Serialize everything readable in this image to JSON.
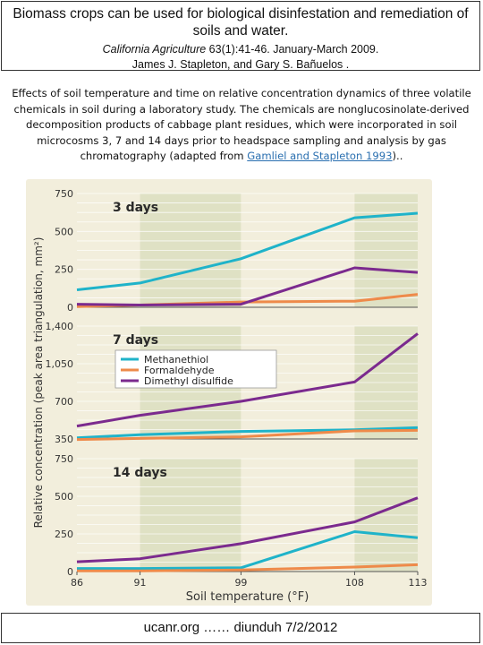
{
  "header": {
    "title": "Biomass crops can be used for biological disinfestation and remediation of soils and water.",
    "journal": "California Agriculture",
    "citation_rest": " 63(1):41-46. January-March 2009.",
    "authors": "James J. Stapleton, and  Gary S. Bañuelos ."
  },
  "caption": {
    "text": "Effects of soil temperature and time on relative concentration dynamics of three volatile chemicals in soil during a laboratory study. The chemicals are nonglucosinolate-derived decomposition products of cabbage plant residues, which were incorporated in soil microcosms 3, 7 and 14 days prior to headspace sampling and analysis by gas chromatography (adapted from ",
    "link": "Gamliel and Stapleton 1993",
    "tail": ").."
  },
  "footer": {
    "text": "ucanr.org ……  diunduh 7/2/2012"
  },
  "colors": {
    "Methanethiol": "#1fb3c9",
    "Formaldehyde": "#ee8a4a",
    "Dimethyl disulfide": "#7b2a8e",
    "band_light": "#f2eedc",
    "band_green": "#dfe1c4"
  },
  "chart_data": {
    "type": "line",
    "xlabel": "Soil temperature (°F)",
    "ylabel": "Relative concentration (peak area triangulation, mm²)",
    "x": [
      86,
      91,
      99,
      108,
      113
    ],
    "x_tick_labels": [
      "86",
      "91",
      "99",
      "108",
      "113"
    ],
    "legend": [
      "Methanethiol",
      "Formaldehyde",
      "Dimethyl disulfide"
    ],
    "legend_position": "top-left of middle panel",
    "panels": [
      {
        "label": "3 days",
        "ylim": [
          0,
          750
        ],
        "y_tick_labels": [
          "750",
          "500",
          "250",
          "0"
        ],
        "yticks": [
          750,
          500,
          250,
          0
        ],
        "series": [
          {
            "name": "Methanethiol",
            "values": [
              115,
              160,
              320,
              590,
              620
            ]
          },
          {
            "name": "Formaldehyde",
            "values": [
              5,
              15,
              35,
              40,
              85
            ]
          },
          {
            "name": "Dimethyl disulfide",
            "values": [
              20,
              15,
              20,
              260,
              230
            ]
          }
        ]
      },
      {
        "label": "7 days",
        "ylim": [
          350,
          1400
        ],
        "y_tick_labels": [
          "1,400",
          "1,050",
          "700",
          "350"
        ],
        "yticks": [
          1400,
          1050,
          700,
          350
        ],
        "series": [
          {
            "name": "Methanethiol",
            "values": [
              360,
              390,
              420,
              435,
              455
            ]
          },
          {
            "name": "Formaldehyde",
            "values": [
              345,
              355,
              370,
              425,
              430
            ]
          },
          {
            "name": "Dimethyl disulfide",
            "values": [
              470,
              570,
              700,
              880,
              1330
            ]
          }
        ]
      },
      {
        "label": "14 days",
        "ylim": [
          0,
          750
        ],
        "y_tick_labels": [
          "750",
          "500",
          "250",
          "0"
        ],
        "yticks": [
          750,
          500,
          250,
          0
        ],
        "series": [
          {
            "name": "Methanethiol",
            "values": [
              20,
              20,
              25,
              265,
              225
            ]
          },
          {
            "name": "Formaldehyde",
            "values": [
              5,
              5,
              10,
              30,
              45
            ]
          },
          {
            "name": "Dimethyl disulfide",
            "values": [
              65,
              85,
              185,
              330,
              490
            ]
          }
        ]
      }
    ]
  }
}
